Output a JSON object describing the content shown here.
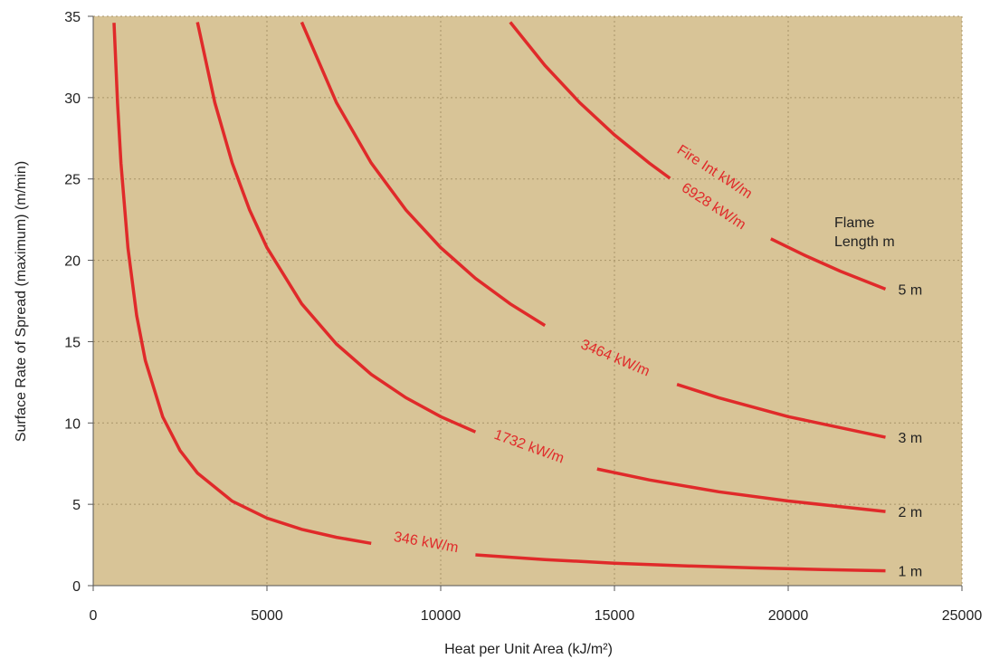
{
  "chart_data": {
    "type": "line",
    "x_label": "Heat per Unit Area (kJ/m²)",
    "y_label": "Surface Rate of Spread (maximum) (m/min)",
    "fire_intensity_label": "Fire Int kW/m",
    "flame_length_title": "Flame Length m",
    "xlim": [
      0,
      25000
    ],
    "xticks": [
      0,
      5000,
      10000,
      15000,
      20000,
      25000
    ],
    "ylim": [
      0,
      35
    ],
    "yticks": [
      0,
      5,
      10,
      15,
      20,
      25,
      30,
      35
    ],
    "grid": true,
    "background": "#d8c497",
    "series": [
      {
        "name": "346 kW/m",
        "end_label": "1 m",
        "color": "#e02a2a",
        "x": [
          600,
          700,
          800,
          1000,
          1250,
          1500,
          2000,
          2500,
          3000,
          4000,
          5000,
          6000,
          7000,
          8000,
          null,
          11000,
          13000,
          15000,
          17000,
          19000,
          21000,
          22800
        ],
        "values": [
          34.6,
          29.66,
          25.95,
          20.76,
          16.61,
          13.84,
          10.38,
          8.3,
          6.92,
          5.19,
          4.15,
          3.46,
          2.97,
          2.6,
          null,
          1.89,
          1.6,
          1.38,
          1.22,
          1.09,
          0.99,
          0.91
        ]
      },
      {
        "name": "1732 kW/m",
        "end_label": "2 m",
        "color": "#e02a2a",
        "x": [
          3000,
          3500,
          4000,
          4500,
          5000,
          6000,
          7000,
          8000,
          9000,
          10000,
          11000,
          null,
          14500,
          16000,
          18000,
          20000,
          22800
        ],
        "values": [
          34.64,
          29.69,
          25.98,
          23.09,
          20.78,
          17.32,
          14.85,
          12.99,
          11.55,
          10.39,
          9.45,
          null,
          7.17,
          6.5,
          5.77,
          5.2,
          4.56
        ]
      },
      {
        "name": "3464 kW/m",
        "end_label": "3 m",
        "color": "#e02a2a",
        "x": [
          6000,
          7000,
          8000,
          9000,
          10000,
          11000,
          12000,
          13000,
          null,
          16800,
          18000,
          20000,
          22800
        ],
        "values": [
          34.64,
          29.69,
          25.98,
          23.09,
          20.78,
          18.89,
          17.32,
          15.99,
          null,
          12.37,
          11.55,
          10.39,
          9.12
        ]
      },
      {
        "name": "6928 kW/m",
        "end_label": "5 m",
        "color": "#e02a2a",
        "x": [
          12000,
          13000,
          14000,
          15000,
          16000,
          16600,
          null,
          19500,
          20500,
          21500,
          22800
        ],
        "values": [
          34.64,
          31.98,
          29.69,
          27.71,
          25.98,
          25.04,
          null,
          21.32,
          20.28,
          19.33,
          18.23
        ]
      }
    ]
  }
}
